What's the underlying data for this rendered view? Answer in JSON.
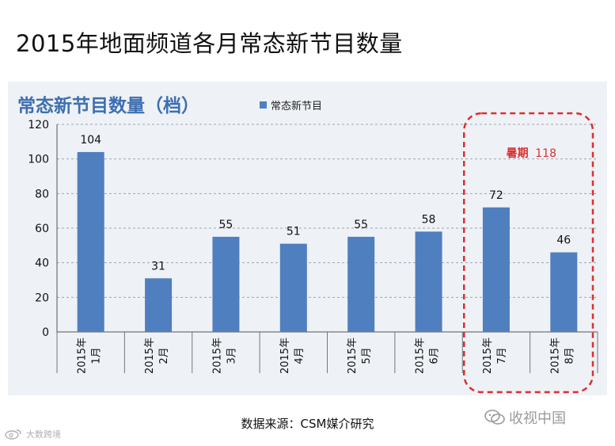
{
  "slide_title": "2015年地面频道各月常态新节目数量",
  "source_text": "数据来源：CSM媒介研究",
  "watermarks": {
    "right": "收视中国",
    "left": "大数跨境"
  },
  "icons": {
    "right_watermark": "wechat-icon",
    "left_watermark": "weibo-icon"
  },
  "chart_data": {
    "type": "bar",
    "title": "常态新节目数量（档）",
    "categories": [
      [
        "2015年",
        "1月"
      ],
      [
        "2015年",
        "2月"
      ],
      [
        "2015年",
        "3月"
      ],
      [
        "2015年",
        "4月"
      ],
      [
        "2015年",
        "5月"
      ],
      [
        "2015年",
        "6月"
      ],
      [
        "2015年",
        "7月"
      ],
      [
        "2015年",
        "8月"
      ]
    ],
    "series": [
      {
        "name": "常态新节目",
        "values": [
          104,
          31,
          55,
          51,
          55,
          58,
          72,
          46
        ],
        "color": "#4f7fbf"
      }
    ],
    "ylim": [
      0,
      120
    ],
    "yticks": [
      0,
      20,
      40,
      60,
      80,
      100,
      120
    ],
    "grid": true,
    "legend_position": "top",
    "annotation": {
      "label": "暑期",
      "value": "118",
      "covers_categories": [
        6,
        7
      ],
      "color": "#d93030"
    }
  }
}
